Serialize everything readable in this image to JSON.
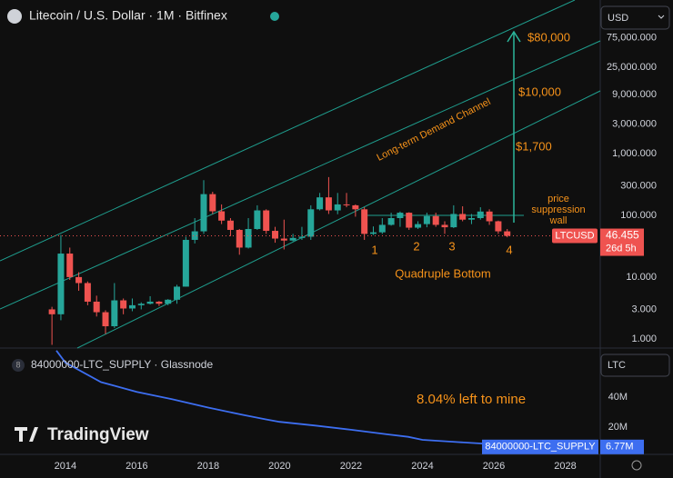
{
  "chart_data": [
    {
      "type": "candlestick",
      "title": "Litecoin / U.S. Dollar · 1M · Bitfinex",
      "currency": "USD",
      "log_scale": true,
      "grid": false,
      "up_color": "#26a69a",
      "down_color": "#ef5350",
      "xlim": [
        2012.17,
        2028.98
      ],
      "ylim": [
        0.71,
        305000
      ],
      "yticks": [
        {
          "value": 75000,
          "label": "75,000.000"
        },
        {
          "value": 25000,
          "label": "25,000.000"
        },
        {
          "value": 9000,
          "label": "9,000.000"
        },
        {
          "value": 3000,
          "label": "3,000.000"
        },
        {
          "value": 1000,
          "label": "1,000.000"
        },
        {
          "value": 300,
          "label": "300.000"
        },
        {
          "value": 100,
          "label": "100.000"
        },
        {
          "value": 10,
          "label": "10.000"
        },
        {
          "value": 3,
          "label": "3.000"
        },
        {
          "value": 1,
          "label": "1.000"
        }
      ],
      "x": [
        2013.625,
        2013.875,
        2014.125,
        2014.375,
        2014.625,
        2014.875,
        2015.125,
        2015.375,
        2015.625,
        2015.875,
        2016.125,
        2016.375,
        2016.625,
        2016.875,
        2017.125,
        2017.375,
        2017.625,
        2017.875,
        2018.125,
        2018.375,
        2018.625,
        2018.875,
        2019.125,
        2019.375,
        2019.625,
        2019.875,
        2020.125,
        2020.375,
        2020.625,
        2020.875,
        2021.125,
        2021.375,
        2021.625,
        2021.875,
        2022.125,
        2022.375,
        2022.625,
        2022.875,
        2023.125,
        2023.375,
        2023.625,
        2023.875,
        2024.125,
        2024.375,
        2024.625,
        2024.875,
        2025.125,
        2025.375,
        2025.625,
        2025.875,
        2026.125,
        2026.375
      ],
      "open": [
        3,
        2.5,
        24,
        10,
        8,
        4,
        2.7,
        1.6,
        4.2,
        3.1,
        3.5,
        3.7,
        4,
        3.7,
        4.3,
        7,
        40,
        55,
        220,
        116,
        82,
        58,
        30,
        60,
        120,
        56,
        42,
        39,
        43,
        45,
        125,
        195,
        120,
        150,
        145,
        125,
        50,
        53,
        70,
        90,
        110,
        63,
        72,
        97,
        70,
        64,
        105,
        85,
        90,
        115,
        80,
        55
      ],
      "high": [
        3.3,
        48,
        30,
        12,
        8.5,
        5,
        2.9,
        8,
        4.5,
        4.5,
        3.9,
        4.9,
        4.1,
        4.4,
        7.5,
        45,
        90,
        370,
        240,
        150,
        90,
        60,
        90,
        145,
        125,
        65,
        85,
        50,
        65,
        145,
        230,
        415,
        230,
        230,
        150,
        135,
        66,
        90,
        110,
        115,
        112,
        80,
        110,
        110,
        80,
        145,
        140,
        105,
        135,
        125,
        82,
        60
      ],
      "low": [
        0.8,
        2,
        9,
        6,
        3.5,
        2.3,
        1.2,
        1.5,
        2.5,
        2.8,
        3,
        3.6,
        3.4,
        3.5,
        3.7,
        7,
        35,
        50,
        105,
        72,
        46,
        23,
        29,
        58,
        50,
        36,
        28,
        38,
        40,
        40,
        120,
        105,
        104,
        135,
        95,
        40,
        48,
        50,
        68,
        65,
        58,
        60,
        64,
        65,
        50,
        62,
        80,
        72,
        85,
        70,
        50,
        44
      ],
      "close": [
        2.5,
        24,
        10,
        8,
        4,
        2.7,
        1.6,
        4.2,
        3.1,
        3.5,
        3.7,
        4,
        3.7,
        4.3,
        7,
        40,
        55,
        220,
        116,
        82,
        58,
        30,
        60,
        120,
        56,
        42,
        39,
        43,
        45,
        125,
        195,
        120,
        150,
        145,
        125,
        50,
        53,
        70,
        90,
        110,
        63,
        72,
        97,
        70,
        64,
        105,
        85,
        90,
        115,
        80,
        55,
        46.455
      ],
      "last_price": 46.455,
      "symbol": "LTCUSD",
      "countdown": "26d 5h",
      "targets": [
        "$80,000",
        "$10,000",
        "$1,700"
      ],
      "channel_label": "Long-term Demand Channel",
      "wall_label": [
        "price",
        "suppression",
        "wall"
      ],
      "bottom_labels": [
        "1",
        "2",
        "3",
        "4"
      ],
      "pattern_label": "Quadruple Bottom"
    },
    {
      "type": "line",
      "pane_index": "8",
      "title": "84000000-LTC_SUPPLY · Glassnode",
      "unit": "LTC",
      "annotation": "8.04% left to mine",
      "watermark": "TradingView",
      "xlim": [
        2012.17,
        2028.98
      ],
      "xticks": [
        2014,
        2016,
        2018,
        2020,
        2022,
        2024,
        2026,
        2028
      ],
      "ylim": [
        1800000,
        72100000
      ],
      "yticks": [
        {
          "value": 40000000,
          "label": "40M"
        },
        {
          "value": 20000000,
          "label": "20M"
        }
      ],
      "series": [
        {
          "name": "84000000-LTC_SUPPLY",
          "color": "#3d6ef0",
          "x": [
            2013.75,
            2014,
            2015,
            2016,
            2017,
            2018,
            2019,
            2019.6,
            2020,
            2021,
            2022,
            2023,
            2023.6,
            2024,
            2025,
            2026,
            2027,
            2028,
            2028.9
          ],
          "values": [
            71000000,
            63000000,
            50000000,
            43500000,
            38500000,
            33000000,
            28000000,
            25200000,
            23500000,
            21000000,
            18200000,
            15200000,
            13500000,
            11500000,
            10000000,
            8500000,
            7700000,
            7100000,
            6770000
          ]
        }
      ],
      "last_value": {
        "value": 6770000,
        "label": "6.77M"
      }
    }
  ]
}
